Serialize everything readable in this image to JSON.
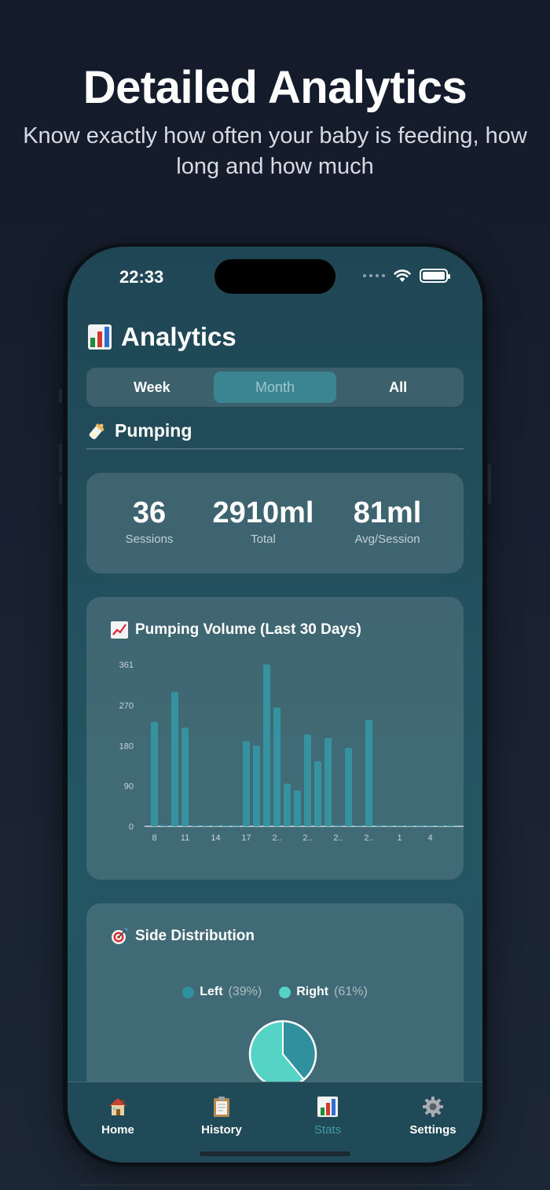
{
  "promo": {
    "headline": "Detailed Analytics",
    "subline": "Know exactly how often your baby is feeding, how long and how much"
  },
  "status": {
    "time": "22:33"
  },
  "header": {
    "title": "Analytics",
    "icon": "bar-chart-icon"
  },
  "period_tabs": [
    {
      "label": "Week",
      "selected": false
    },
    {
      "label": "Month",
      "selected": true
    },
    {
      "label": "All",
      "selected": false
    }
  ],
  "section": {
    "title": "Pumping",
    "icon": "baby-bottle-icon"
  },
  "summary": [
    {
      "value": "36",
      "label": "Sessions"
    },
    {
      "value": "2910ml",
      "label": "Total"
    },
    {
      "value": "81ml",
      "label": "Avg/Session"
    }
  ],
  "chart_data": [
    {
      "type": "bar",
      "title": "Pumping Volume (Last 30 Days)",
      "title_icon": "chart-increasing-icon",
      "xlabel": "",
      "ylabel": "",
      "ylim": [
        0,
        361
      ],
      "y_ticks": [
        "0",
        "90",
        "180",
        "270",
        "361"
      ],
      "x_tick_labels": [
        "8",
        "11",
        "14",
        "17",
        "2..",
        "2..",
        "2..",
        "2..",
        "1",
        "4"
      ],
      "series": [
        {
          "values": [
            233,
            0,
            300,
            220,
            0,
            0,
            0,
            0,
            0,
            190,
            180,
            361,
            265,
            95,
            80,
            205,
            145,
            197,
            0,
            175,
            0,
            238,
            0,
            0,
            0,
            0,
            0,
            0,
            0,
            0
          ]
        }
      ],
      "color": "#3593a0",
      "grid": false
    },
    {
      "type": "pie",
      "title": "Side Distribution",
      "title_icon": "direct-hit-icon",
      "slices": [
        {
          "name": "Left",
          "percent_label": "(39%)",
          "value": 39,
          "color": "#30909d"
        },
        {
          "name": "Right",
          "percent_label": "(61%)",
          "value": 61,
          "color": "#55d3c4"
        }
      ]
    }
  ],
  "tabbar": [
    {
      "label": "Home",
      "icon": "house-icon",
      "active": false
    },
    {
      "label": "History",
      "icon": "clipboard-icon",
      "active": false
    },
    {
      "label": "Stats",
      "icon": "bar-chart-icon",
      "active": true
    },
    {
      "label": "Settings",
      "icon": "gear-icon",
      "active": false
    }
  ]
}
